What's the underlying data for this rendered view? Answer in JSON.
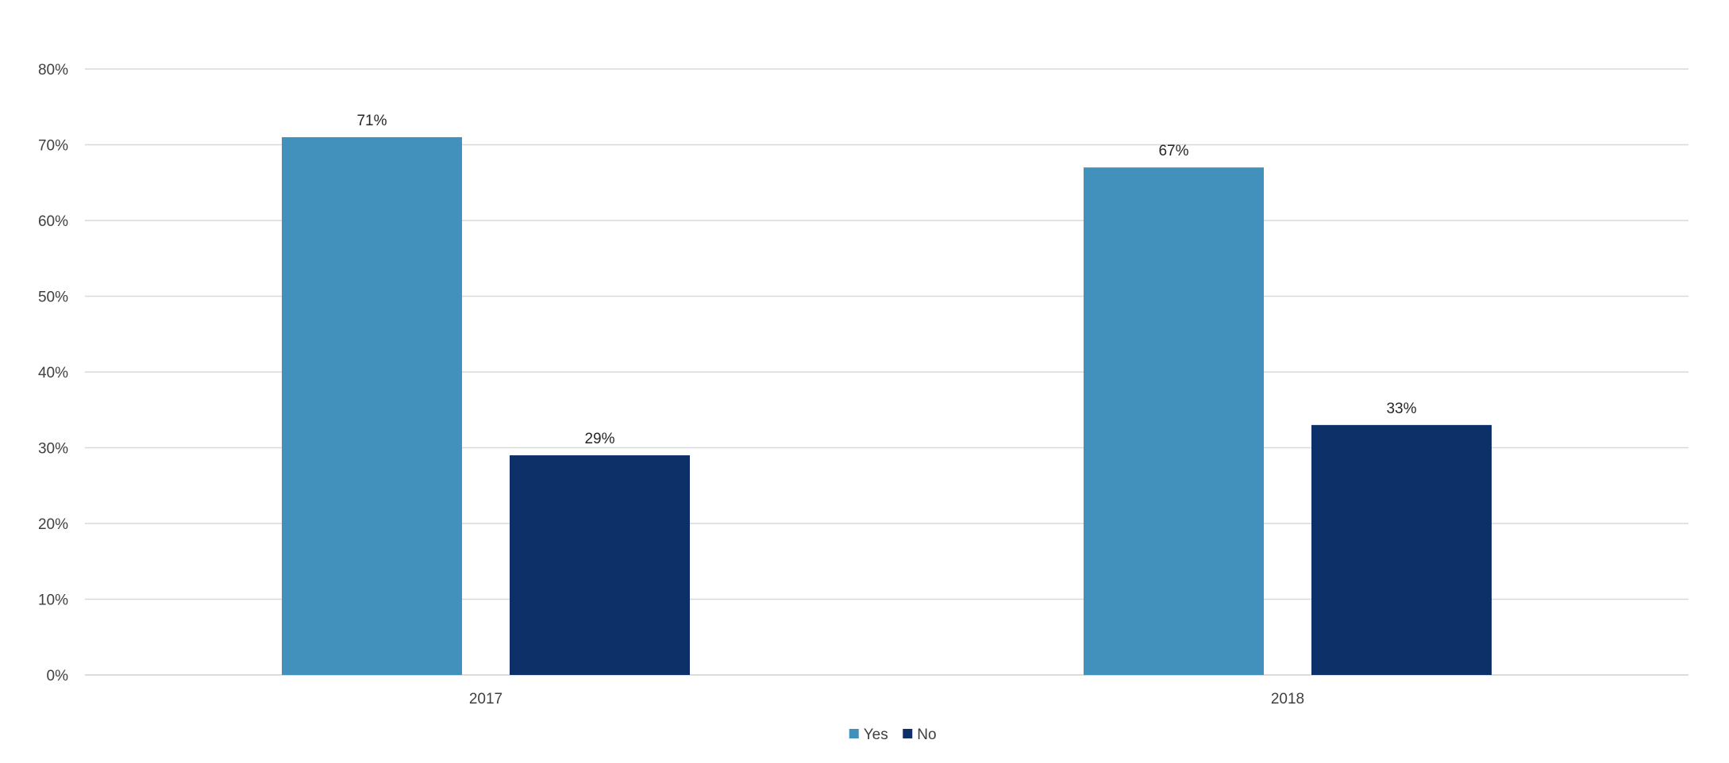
{
  "chart_data": {
    "type": "bar",
    "title": "",
    "xlabel": "",
    "ylabel": "",
    "categories": [
      "2017",
      "2018"
    ],
    "series": [
      {
        "name": "Yes",
        "values": [
          71,
          67
        ],
        "labels": [
          "71%",
          "67%"
        ],
        "color": "#4191bc"
      },
      {
        "name": "No",
        "values": [
          29,
          33
        ],
        "labels": [
          "29%",
          "33%"
        ],
        "color": "#0e3068"
      }
    ],
    "ylim": [
      0,
      80
    ],
    "yticks": [
      0,
      10,
      20,
      30,
      40,
      50,
      60,
      70,
      80
    ],
    "ytick_labels": [
      "0%",
      "10%",
      "20%",
      "30%",
      "40%",
      "50%",
      "60%",
      "70%",
      "80%"
    ],
    "grid": true,
    "legend_position": "bottom-center"
  }
}
